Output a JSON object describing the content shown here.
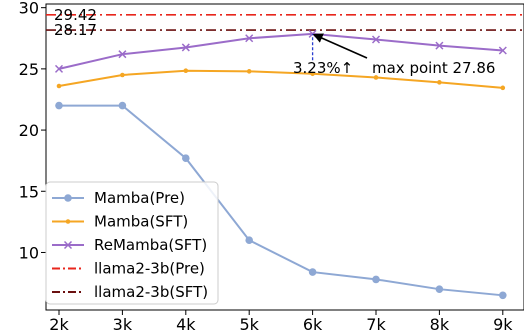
{
  "chart_data": {
    "type": "line",
    "categories": [
      "2k",
      "3k",
      "4k",
      "5k",
      "6k",
      "7k",
      "8k",
      "9k"
    ],
    "ylim": [
      5.3,
      30.3
    ],
    "yticks": [
      10,
      15,
      20,
      25,
      30
    ],
    "grid": false,
    "legend_position": "lower-left",
    "series": [
      {
        "name": "Mamba(Pre)",
        "values": [
          22.0,
          22.0,
          17.7,
          11.0,
          8.4,
          7.8,
          7.0,
          6.5
        ],
        "color": "#8ea8d4",
        "marker": "circle",
        "style": "solid"
      },
      {
        "name": "Mamba(SFT)",
        "values": [
          23.6,
          24.5,
          24.85,
          24.8,
          24.6,
          24.3,
          23.9,
          23.45
        ],
        "color": "#f5a623",
        "marker": "dot",
        "style": "solid"
      },
      {
        "name": "ReMamba(SFT)",
        "values": [
          25.0,
          26.2,
          26.75,
          27.5,
          27.86,
          27.4,
          26.9,
          26.5
        ],
        "color": "#9b6cc9",
        "marker": "x",
        "style": "solid"
      }
    ],
    "reference_lines": [
      {
        "name": "llama2-3b(Pre)",
        "value": 29.42,
        "label": "29.42",
        "color": "#e8261c",
        "style": "dashdot"
      },
      {
        "name": "llama2-3b(SFT)",
        "value": 28.17,
        "label": "28.17",
        "color": "#6b1010",
        "style": "dashdot"
      }
    ],
    "annotations": {
      "percent": {
        "text": "3.23%↑",
        "x": "6k",
        "y_from": 25.7,
        "y_to": 27.86
      },
      "max_point": {
        "text": "max point 27.86",
        "x": "6k",
        "y": 27.86
      }
    }
  }
}
